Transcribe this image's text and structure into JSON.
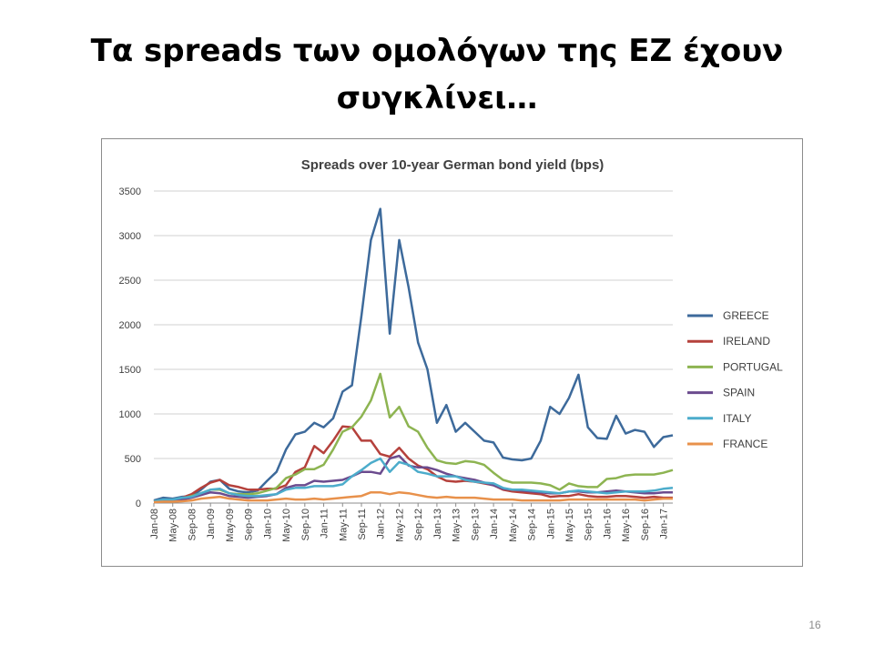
{
  "slide": {
    "title": "Τα spreads των ομολόγων της ΕΖ έχουν συγκλίνει…",
    "page_number": "16"
  },
  "chart_data": {
    "type": "line",
    "title": "Spreads over 10-year German bond yield (bps)",
    "xlabel": "",
    "ylabel": "",
    "ylim": [
      0,
      3500
    ],
    "yticks": [
      0,
      500,
      1000,
      1500,
      2000,
      2500,
      3000,
      3500
    ],
    "grid": true,
    "legend_position": "right",
    "x_tick_labels": [
      "Jan-08",
      "May-08",
      "Sep-08",
      "Jan-09",
      "May-09",
      "Sep-09",
      "Jan-10",
      "May-10",
      "Sep-10",
      "Jan-11",
      "May-11",
      "Sep-11",
      "Jan-12",
      "May-12",
      "Sep-12",
      "Jan-13",
      "May-13",
      "Sep-13",
      "Jan-14",
      "May-14",
      "Sep-14",
      "Jan-15",
      "May-15",
      "Sep-15",
      "Jan-16",
      "May-16",
      "Sep-16",
      "Jan-17"
    ],
    "x": [
      "Jan-08",
      "Mar-08",
      "May-08",
      "Jul-08",
      "Sep-08",
      "Nov-08",
      "Jan-09",
      "Mar-09",
      "May-09",
      "Jul-09",
      "Sep-09",
      "Nov-09",
      "Jan-10",
      "Mar-10",
      "May-10",
      "Jul-10",
      "Sep-10",
      "Nov-10",
      "Jan-11",
      "Mar-11",
      "May-11",
      "Jul-11",
      "Sep-11",
      "Nov-11",
      "Jan-12",
      "Mar-12",
      "May-12",
      "Jul-12",
      "Sep-12",
      "Nov-12",
      "Jan-13",
      "Mar-13",
      "May-13",
      "Jul-13",
      "Sep-13",
      "Nov-13",
      "Jan-14",
      "Mar-14",
      "May-14",
      "Jul-14",
      "Sep-14",
      "Nov-14",
      "Jan-15",
      "Mar-15",
      "May-15",
      "Jul-15",
      "Sep-15",
      "Nov-15",
      "Jan-16",
      "Mar-16",
      "May-16",
      "Jul-16",
      "Sep-16",
      "Nov-16",
      "Jan-17",
      "Mar-17"
    ],
    "series": [
      {
        "name": "GREECE",
        "color": "#3d6a9b",
        "values": [
          30,
          60,
          50,
          70,
          80,
          150,
          240,
          260,
          160,
          130,
          120,
          140,
          250,
          350,
          600,
          770,
          800,
          900,
          850,
          950,
          1250,
          1320,
          2100,
          2950,
          3300,
          1900,
          2950,
          2420,
          1800,
          1500,
          900,
          1100,
          800,
          900,
          800,
          700,
          680,
          510,
          490,
          480,
          500,
          700,
          1080,
          1000,
          1180,
          1440,
          850,
          730,
          720,
          980,
          780,
          820,
          800,
          630,
          740,
          760
        ]
      },
      {
        "name": "IRELAND",
        "color": "#b5413c",
        "values": [
          20,
          30,
          30,
          60,
          100,
          170,
          230,
          260,
          200,
          180,
          150,
          150,
          160,
          160,
          200,
          350,
          400,
          640,
          560,
          700,
          860,
          850,
          700,
          700,
          550,
          520,
          620,
          500,
          420,
          380,
          300,
          250,
          240,
          250,
          240,
          220,
          200,
          150,
          130,
          120,
          110,
          100,
          70,
          80,
          80,
          100,
          80,
          70,
          70,
          80,
          80,
          70,
          60,
          70,
          60,
          60
        ]
      },
      {
        "name": "PORTUGAL",
        "color": "#8db451",
        "values": [
          20,
          30,
          30,
          50,
          80,
          110,
          150,
          150,
          110,
          100,
          100,
          110,
          140,
          170,
          280,
          320,
          380,
          380,
          430,
          600,
          800,
          850,
          970,
          1150,
          1450,
          960,
          1080,
          860,
          800,
          620,
          480,
          450,
          440,
          470,
          460,
          430,
          340,
          260,
          230,
          230,
          230,
          220,
          200,
          150,
          220,
          190,
          180,
          180,
          270,
          280,
          310,
          320,
          320,
          320,
          340,
          370
        ]
      },
      {
        "name": "SPAIN",
        "color": "#6b4b8e",
        "values": [
          15,
          30,
          30,
          40,
          60,
          90,
          120,
          110,
          80,
          70,
          60,
          70,
          80,
          100,
          170,
          200,
          200,
          250,
          240,
          250,
          260,
          300,
          350,
          350,
          330,
          500,
          530,
          420,
          400,
          400,
          370,
          330,
          300,
          280,
          260,
          230,
          200,
          160,
          150,
          140,
          130,
          120,
          110,
          110,
          130,
          130,
          120,
          120,
          130,
          140,
          130,
          120,
          110,
          110,
          120,
          120
        ]
      },
      {
        "name": "ITALY",
        "color": "#4caccb",
        "values": [
          20,
          40,
          40,
          60,
          70,
          110,
          150,
          160,
          110,
          90,
          80,
          80,
          90,
          100,
          150,
          170,
          170,
          190,
          190,
          190,
          210,
          300,
          370,
          450,
          500,
          350,
          460,
          430,
          350,
          330,
          300,
          300,
          300,
          260,
          240,
          230,
          220,
          170,
          150,
          150,
          140,
          130,
          120,
          110,
          130,
          140,
          130,
          120,
          110,
          120,
          130,
          130,
          130,
          140,
          160,
          170
        ]
      },
      {
        "name": "FRANCE",
        "color": "#e8914b",
        "values": [
          10,
          15,
          15,
          20,
          30,
          50,
          60,
          70,
          50,
          40,
          30,
          30,
          30,
          40,
          50,
          40,
          40,
          50,
          40,
          50,
          60,
          70,
          80,
          120,
          120,
          100,
          120,
          110,
          90,
          70,
          60,
          70,
          60,
          60,
          60,
          50,
          40,
          40,
          40,
          30,
          30,
          30,
          30,
          30,
          40,
          40,
          40,
          40,
          40,
          40,
          40,
          40,
          30,
          40,
          50,
          50
        ]
      }
    ]
  }
}
